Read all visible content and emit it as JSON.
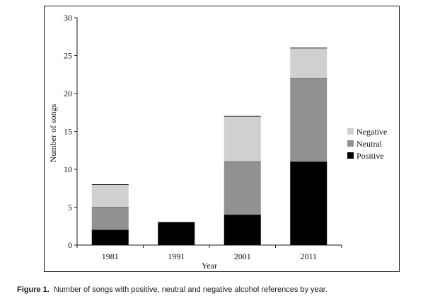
{
  "chart_data": {
    "type": "bar",
    "stacked": true,
    "categories": [
      "1981",
      "1991",
      "2001",
      "2011"
    ],
    "series": [
      {
        "name": "Positive",
        "values": [
          2,
          3,
          4,
          11
        ],
        "color": "#000000"
      },
      {
        "name": "Neutral",
        "values": [
          3,
          0,
          7,
          11
        ],
        "color": "#919191"
      },
      {
        "name": "Negative",
        "values": [
          3,
          0,
          6,
          4
        ],
        "color": "#d0d0d0"
      }
    ],
    "xlabel": "Year",
    "ylabel": "Number of songs",
    "ylim": [
      0,
      30
    ],
    "yticks": [
      0,
      5,
      10,
      15,
      20,
      25,
      30
    ],
    "grid": false,
    "legend_position": "right"
  },
  "caption": {
    "label": "Figure 1.",
    "text": "Number of songs with positive, neutral and negative alcohol references by year."
  }
}
